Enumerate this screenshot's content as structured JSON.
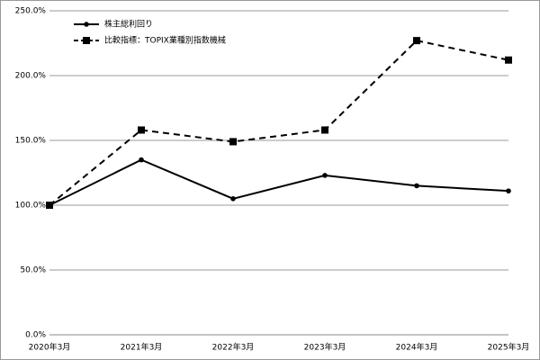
{
  "chart_data": {
    "type": "line",
    "categories": [
      "2020年3月",
      "2021年3月",
      "2022年3月",
      "2023年3月",
      "2024年3月",
      "2025年3月"
    ],
    "series": [
      {
        "name": "株主総利回り",
        "color": "#000000",
        "marker": "circle",
        "dash": false,
        "values": [
          100,
          135,
          105,
          123,
          115,
          111
        ]
      },
      {
        "name": "比較指標：TOPIX業種別指数機械",
        "color": "#000000",
        "marker": "square",
        "dash": true,
        "values": [
          100,
          158,
          149,
          158,
          227,
          212
        ]
      }
    ],
    "ylim": [
      0,
      250
    ],
    "yticks": [
      {
        "value": 0,
        "label": "0.0%"
      },
      {
        "value": 50,
        "label": "50.0%"
      },
      {
        "value": 100,
        "label": "100.0%"
      },
      {
        "value": 150,
        "label": "150.0%"
      },
      {
        "value": 200,
        "label": "200.0%"
      },
      {
        "value": 250,
        "label": "250.0%"
      }
    ],
    "grid": true,
    "legend": "top-left"
  }
}
